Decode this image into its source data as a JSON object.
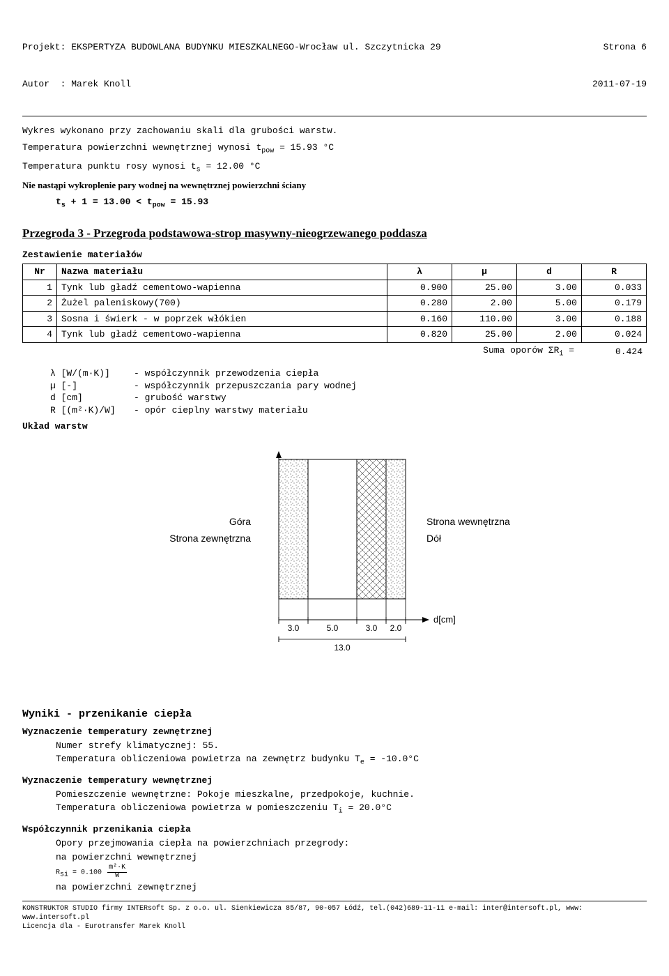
{
  "header": {
    "project_label": "Projekt: EKSPERTYZA BUDOWLANA BUDYNKU MIESZKALNEGO-Wrocław ul. Szczytnicka 29",
    "author_label": "Autor  : Marek Knoll",
    "page_label": "Strona 6",
    "date": "2011-07-19"
  },
  "intro": {
    "line1": "Wykres wykonano przy zachowaniu skali dla grubości warstw.",
    "temp_pow_label": "Temperatura powierzchni wewnętrznej wynosi t",
    "temp_pow_sub": "pow",
    "temp_pow_val": " = 15.93 °C",
    "temp_s_label": "Temperatura punktu rosy wynosi t",
    "temp_s_sub": "s",
    "temp_s_val": " =  12.00 °C",
    "no_cond": "Nie nastąpi wykroplenie pary wodnej na wewnętrznej powierzchni ściany",
    "ineq_ts": "t",
    "ineq_ts_sub": "s",
    "ineq_mid": " + 1 = 13.00 < t",
    "ineq_pow_sub": "pow",
    "ineq_end": " = 15.93"
  },
  "section_title": "Przegroda 3  -  Przegroda podstawowa-strop masywny-nieogrzewanego poddasza",
  "table": {
    "title": "Zestawienie materiałów",
    "headers": [
      "Nr",
      "Nazwa materiału",
      "λ",
      "µ",
      "d",
      "R"
    ],
    "rows": [
      [
        "1",
        "Tynk lub gładź cementowo-wapienna",
        "0.900",
        "25.00",
        "3.00",
        "0.033"
      ],
      [
        "2",
        "Żużel paleniskowy(700)",
        "0.280",
        "2.00",
        "5.00",
        "0.179"
      ],
      [
        "3",
        "Sosna i świerk - w poprzek włókien",
        "0.160",
        "110.00",
        "3.00",
        "0.188"
      ],
      [
        "4",
        "Tynk lub gładź cementowo-wapienna",
        "0.820",
        "25.00",
        "2.00",
        "0.024"
      ]
    ],
    "sum_label": "Suma oporów ΣR",
    "sum_sub": "i",
    "sum_eq": " = ",
    "sum_val": "0.424"
  },
  "legend": {
    "rows": [
      {
        "sym": "λ [W/(m·K)]",
        "desc": "- współczynnik przewodzenia ciepła"
      },
      {
        "sym": "µ [-]",
        "desc": "- współczynnik przepuszczania pary wodnej"
      },
      {
        "sym": "d [cm]",
        "desc": "- grubość warstwy"
      },
      {
        "sym": "R [(m²·K)/W]",
        "desc": "- opór cieplny warstwy materiału"
      }
    ]
  },
  "layers_title": "Układ warstw",
  "diagram": {
    "labels": {
      "top_left": "Góra",
      "bot_left": "Strona zewnętrzna",
      "top_right": "Strona wewnętrzna",
      "bot_right": "Dół",
      "d_unit": "d[cm]"
    },
    "widths_cm": [
      3.0,
      5.0,
      3.0,
      2.0
    ],
    "total_cm": 13.0,
    "colors": {
      "line": "#000000",
      "bg": "#ffffff"
    }
  },
  "results": {
    "title": "Wyniki - przenikanie ciepła",
    "ext_title": "Wyznaczenie temperatury zewnętrznej",
    "ext_l1": "Numer strefy klimatycznej: 55.",
    "ext_l2_a": "Temperatura obliczeniowa powietrza na zewnętrz budynku T",
    "ext_l2_sub": "e",
    "ext_l2_b": " = -10.0°C",
    "int_title": "Wyznaczenie temperatury wewnętrznej",
    "int_l1": "Pomieszczenie wewnętrzne: Pokoje mieszkalne, przedpokoje, kuchnie.",
    "int_l2_a": "Temperatura obliczeniowa powietrza w pomieszczeniu T",
    "int_l2_sub": "i",
    "int_l2_b": "  = 20.0°C",
    "coef_title": "Współczynnik przenikania ciepła",
    "coef_l1": "Opory przejmowania ciepła na powierzchniach przegrody:",
    "coef_l2": "na powierzchni wewnętrznej",
    "rsi_label": "R",
    "rsi_sub": "si",
    "rsi_val": " = 0.100",
    "frac_top": "m²·K",
    "frac_bot": "W",
    "coef_l3": "na powierzchni zewnętrznej"
  },
  "footer": {
    "l1": "KONSTRUKTOR STUDIO firmy INTERsoft Sp. z o.o. ul. Sienkiewicza 85/87, 90-057 Łódź, tel.(042)689-11-11 e-mail: inter@intersoft.pl, www: www.intersoft.pl",
    "l2": "Licencja dla - Eurotransfer Marek Knoll"
  }
}
